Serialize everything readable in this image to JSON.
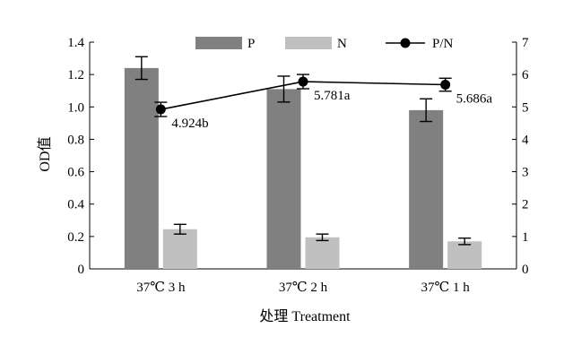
{
  "chart_data": {
    "type": "bar",
    "categories": [
      "37℃ 3 h",
      "37℃ 2 h",
      "37℃ 1 h"
    ],
    "xlabel": "处理 Treatment",
    "ylabel": "OD值",
    "ylim": [
      0,
      1.4
    ],
    "y2lim": [
      0,
      7
    ],
    "yticks": [
      "0",
      "0.2",
      "0.4",
      "0.6",
      "0.8",
      "1.0",
      "1.2",
      "1.4"
    ],
    "y2ticks": [
      "0",
      "1",
      "2",
      "3",
      "4",
      "5",
      "6",
      "7"
    ],
    "legend_position": "top",
    "series": [
      {
        "name": "P",
        "kind": "bar",
        "color": "#808080",
        "values": [
          1.24,
          1.11,
          0.98
        ],
        "errors": [
          0.07,
          0.08,
          0.07
        ]
      },
      {
        "name": "N",
        "kind": "bar",
        "color": "#c0c0c0",
        "values": [
          0.245,
          0.195,
          0.17
        ],
        "errors": [
          0.03,
          0.02,
          0.02
        ]
      },
      {
        "name": "P/N",
        "kind": "line",
        "axis": "right",
        "color": "#000000",
        "values": [
          4.924,
          5.781,
          5.686
        ],
        "errors": [
          0.22,
          0.22,
          0.2
        ],
        "labels": [
          "4.924b",
          "5.781a",
          "5.686a"
        ]
      }
    ]
  }
}
